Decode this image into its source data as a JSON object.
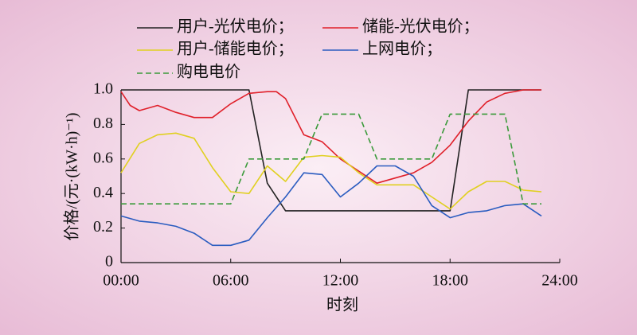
{
  "chart_data": {
    "type": "line",
    "ylabel": "价格/(元·(kW·h)⁻¹)",
    "xlabel": "时刻",
    "xlim": [
      0,
      24
    ],
    "xticks": [
      {
        "value": 0,
        "label": "00:00"
      },
      {
        "value": 6,
        "label": "06:00"
      },
      {
        "value": 12,
        "label": "12:00"
      },
      {
        "value": 18,
        "label": "18:00"
      },
      {
        "value": 24,
        "label": "24:00"
      }
    ],
    "ylim": [
      0,
      1
    ],
    "yticks": [
      0,
      0.2,
      0.4,
      0.6,
      0.8,
      {
        "value": 1,
        "label": "1.0"
      }
    ],
    "series": [
      {
        "name": "用户-光伏电价；",
        "color": "#222222",
        "dash": false,
        "x": [
          0,
          7,
          8,
          9,
          18,
          19,
          23
        ],
        "values": [
          1,
          1,
          0.46,
          0.3,
          0.3,
          1,
          1
        ]
      },
      {
        "name": "储能-光伏电价；",
        "color": "#e0202a",
        "dash": false,
        "x": [
          0,
          0.5,
          1,
          2,
          3,
          4,
          5,
          6,
          7,
          8,
          8.5,
          9,
          10,
          11,
          12,
          13,
          14,
          15,
          16,
          17,
          18,
          19,
          20,
          21,
          22,
          23
        ],
        "values": [
          0.99,
          0.91,
          0.88,
          0.91,
          0.87,
          0.84,
          0.84,
          0.92,
          0.98,
          0.99,
          0.99,
          0.95,
          0.74,
          0.7,
          0.6,
          0.53,
          0.46,
          0.49,
          0.52,
          0.58,
          0.68,
          0.82,
          0.93,
          0.98,
          1,
          1
        ]
      },
      {
        "name": "用户-储能电价；",
        "color": "#e0d020",
        "dash": false,
        "x": [
          0,
          1,
          2,
          3,
          4,
          5,
          6,
          7,
          8,
          9,
          10,
          11,
          12,
          13,
          14,
          15,
          16,
          17,
          18,
          19,
          20,
          21,
          22,
          23
        ],
        "values": [
          0.52,
          0.69,
          0.74,
          0.75,
          0.72,
          0.55,
          0.41,
          0.4,
          0.56,
          0.47,
          0.61,
          0.62,
          0.61,
          0.52,
          0.45,
          0.45,
          0.45,
          0.38,
          0.31,
          0.41,
          0.47,
          0.47,
          0.42,
          0.41
        ]
      },
      {
        "name": "上网电价；",
        "color": "#2a5cc0",
        "dash": false,
        "x": [
          0,
          1,
          2,
          3,
          4,
          5,
          6,
          7,
          8,
          9,
          10,
          11,
          12,
          13,
          14,
          15,
          16,
          17,
          18,
          19,
          20,
          21,
          22,
          23
        ],
        "values": [
          0.27,
          0.24,
          0.23,
          0.21,
          0.17,
          0.1,
          0.1,
          0.13,
          0.26,
          0.38,
          0.52,
          0.51,
          0.38,
          0.46,
          0.56,
          0.56,
          0.5,
          0.33,
          0.26,
          0.29,
          0.3,
          0.33,
          0.34,
          0.27
        ]
      },
      {
        "name": "购电电价",
        "color": "#3a9a3a",
        "dash": true,
        "x": [
          0,
          6,
          7,
          10,
          11,
          13,
          14,
          17,
          18,
          21,
          22,
          23
        ],
        "values": [
          0.34,
          0.34,
          0.6,
          0.6,
          0.86,
          0.86,
          0.6,
          0.6,
          0.86,
          0.86,
          0.34,
          0.34
        ]
      }
    ]
  }
}
